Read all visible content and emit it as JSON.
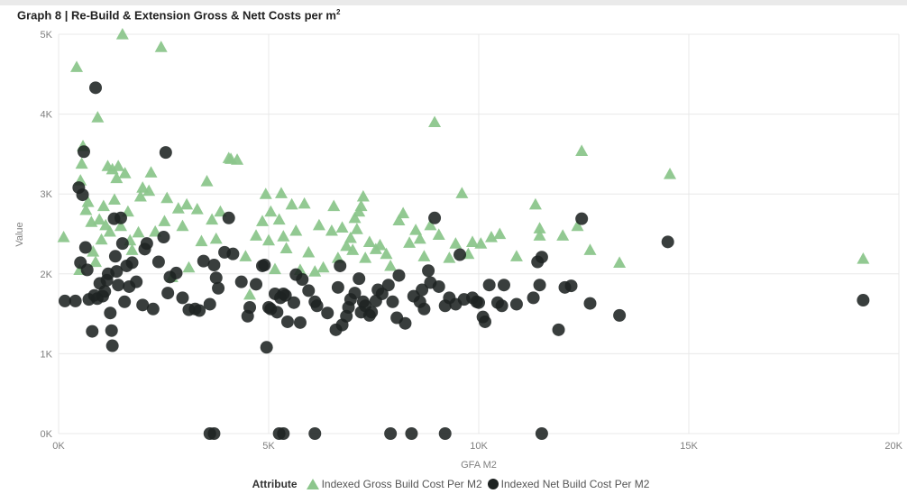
{
  "page": {
    "title": "Graph 8 | Re-Build & Extension Gross & Nett Costs per m",
    "title_sup": "2"
  },
  "legend": {
    "title": "Attribute",
    "gross_label": "Indexed Gross Build Cost Per M2",
    "net_label": "Indexed Net Build Cost Per M2"
  },
  "chart_data": {
    "type": "scatter",
    "title": "Graph 8 | Re-Build & Extension Gross & Nett Costs per m²",
    "xlabel": "GFA M2",
    "ylabel": "Value",
    "xlim": [
      0,
      20000
    ],
    "ylim": [
      0,
      5000
    ],
    "x_ticks": [
      {
        "value": 0,
        "label": "0K"
      },
      {
        "value": 5000,
        "label": "5K"
      },
      {
        "value": 10000,
        "label": "10K"
      },
      {
        "value": 15000,
        "label": "15K"
      },
      {
        "value": 20000,
        "label": "20K"
      }
    ],
    "y_ticks": [
      {
        "value": 0,
        "label": "0K"
      },
      {
        "value": 1000,
        "label": "1K"
      },
      {
        "value": 2000,
        "label": "2K"
      },
      {
        "value": 3000,
        "label": "3K"
      },
      {
        "value": 4000,
        "label": "4K"
      },
      {
        "value": 5000,
        "label": "5K"
      }
    ],
    "grid": true,
    "legend_position": "bottom",
    "series": [
      {
        "name": "Indexed Gross Build Cost Per M2",
        "marker": "triangle",
        "color": "#8cc68c",
        "points": [
          [
            120,
            2460
          ],
          [
            430,
            4590
          ],
          [
            500,
            2050
          ],
          [
            520,
            3170
          ],
          [
            550,
            3380
          ],
          [
            580,
            3600
          ],
          [
            650,
            2800
          ],
          [
            700,
            2900
          ],
          [
            780,
            2650
          ],
          [
            820,
            2280
          ],
          [
            880,
            2150
          ],
          [
            930,
            3960
          ],
          [
            970,
            2680
          ],
          [
            1020,
            2430
          ],
          [
            1070,
            2850
          ],
          [
            1120,
            2610
          ],
          [
            1170,
            3350
          ],
          [
            1220,
            2530
          ],
          [
            1280,
            3310
          ],
          [
            1330,
            2930
          ],
          [
            1380,
            3200
          ],
          [
            1420,
            3350
          ],
          [
            1480,
            2600
          ],
          [
            1520,
            5000
          ],
          [
            1580,
            3260
          ],
          [
            1650,
            2780
          ],
          [
            1700,
            2420
          ],
          [
            1750,
            2300
          ],
          [
            1900,
            2520
          ],
          [
            1950,
            2970
          ],
          [
            2000,
            3080
          ],
          [
            2150,
            3040
          ],
          [
            2200,
            3270
          ],
          [
            2300,
            2530
          ],
          [
            2440,
            4840
          ],
          [
            2520,
            2660
          ],
          [
            2580,
            2950
          ],
          [
            2700,
            1960
          ],
          [
            2850,
            2820
          ],
          [
            2950,
            2600
          ],
          [
            3050,
            2870
          ],
          [
            3100,
            2080
          ],
          [
            3300,
            2810
          ],
          [
            3400,
            2410
          ],
          [
            3530,
            3160
          ],
          [
            3650,
            2680
          ],
          [
            3750,
            2440
          ],
          [
            3850,
            2780
          ],
          [
            4050,
            3450
          ],
          [
            4100,
            3440
          ],
          [
            4250,
            3430
          ],
          [
            4450,
            2220
          ],
          [
            4550,
            1740
          ],
          [
            4700,
            2480
          ],
          [
            4850,
            2660
          ],
          [
            4930,
            3000
          ],
          [
            5000,
            2420
          ],
          [
            5050,
            2780
          ],
          [
            5150,
            2060
          ],
          [
            5250,
            2680
          ],
          [
            5300,
            3010
          ],
          [
            5350,
            2470
          ],
          [
            5420,
            2320
          ],
          [
            5550,
            2870
          ],
          [
            5650,
            2540
          ],
          [
            5750,
            2050
          ],
          [
            5850,
            2880
          ],
          [
            5950,
            2270
          ],
          [
            6100,
            2030
          ],
          [
            6200,
            2610
          ],
          [
            6300,
            2080
          ],
          [
            6500,
            2540
          ],
          [
            6550,
            2850
          ],
          [
            6650,
            2200
          ],
          [
            6750,
            2580
          ],
          [
            6850,
            2350
          ],
          [
            6950,
            2450
          ],
          [
            7000,
            2300
          ],
          [
            7050,
            2700
          ],
          [
            7100,
            2560
          ],
          [
            7150,
            2780
          ],
          [
            7200,
            2850
          ],
          [
            7250,
            2970
          ],
          [
            7300,
            2200
          ],
          [
            7400,
            2400
          ],
          [
            7550,
            2310
          ],
          [
            7650,
            2360
          ],
          [
            7800,
            2250
          ],
          [
            7900,
            2100
          ],
          [
            8100,
            2670
          ],
          [
            8200,
            2760
          ],
          [
            8350,
            2390
          ],
          [
            8500,
            2550
          ],
          [
            8600,
            2440
          ],
          [
            8700,
            2220
          ],
          [
            8850,
            2610
          ],
          [
            8950,
            3900
          ],
          [
            9050,
            2490
          ],
          [
            9300,
            2200
          ],
          [
            9450,
            2380
          ],
          [
            9600,
            3010
          ],
          [
            9750,
            2250
          ],
          [
            9850,
            2400
          ],
          [
            10050,
            2380
          ],
          [
            10300,
            2460
          ],
          [
            10500,
            2500
          ],
          [
            10900,
            2220
          ],
          [
            11350,
            2870
          ],
          [
            11450,
            2570
          ],
          [
            11450,
            2480
          ],
          [
            12000,
            2480
          ],
          [
            12350,
            2600
          ],
          [
            12450,
            3540
          ],
          [
            12650,
            2300
          ],
          [
            13350,
            2140
          ],
          [
            14550,
            3250
          ],
          [
            19150,
            2190
          ]
        ]
      },
      {
        "name": "Indexed Net Build Cost Per M2",
        "marker": "circle",
        "color": "#1e2322",
        "points": [
          [
            150,
            1660
          ],
          [
            400,
            1660
          ],
          [
            480,
            3080
          ],
          [
            520,
            2140
          ],
          [
            570,
            2990
          ],
          [
            600,
            3530
          ],
          [
            640,
            2330
          ],
          [
            680,
            2050
          ],
          [
            720,
            1680
          ],
          [
            800,
            1280
          ],
          [
            850,
            1730
          ],
          [
            880,
            4330
          ],
          [
            920,
            1690
          ],
          [
            980,
            1880
          ],
          [
            1050,
            1720
          ],
          [
            1100,
            1780
          ],
          [
            1150,
            1920
          ],
          [
            1180,
            2000
          ],
          [
            1230,
            1510
          ],
          [
            1260,
            1290
          ],
          [
            1280,
            1100
          ],
          [
            1320,
            2690
          ],
          [
            1350,
            2220
          ],
          [
            1380,
            2030
          ],
          [
            1420,
            1860
          ],
          [
            1480,
            2700
          ],
          [
            1520,
            2380
          ],
          [
            1570,
            1650
          ],
          [
            1620,
            2100
          ],
          [
            1680,
            1840
          ],
          [
            1750,
            2140
          ],
          [
            1850,
            1900
          ],
          [
            2000,
            1610
          ],
          [
            2050,
            2310
          ],
          [
            2100,
            2380
          ],
          [
            2250,
            1560
          ],
          [
            2380,
            2150
          ],
          [
            2500,
            2460
          ],
          [
            2550,
            3520
          ],
          [
            2600,
            1760
          ],
          [
            2650,
            1960
          ],
          [
            2800,
            2010
          ],
          [
            2950,
            1700
          ],
          [
            3100,
            1550
          ],
          [
            3250,
            1560
          ],
          [
            3350,
            1540
          ],
          [
            3450,
            2160
          ],
          [
            3600,
            1620
          ],
          [
            3700,
            2110
          ],
          [
            3750,
            1950
          ],
          [
            3800,
            1820
          ],
          [
            3950,
            2270
          ],
          [
            4050,
            2700
          ],
          [
            4150,
            2250
          ],
          [
            4350,
            1900
          ],
          [
            4500,
            1470
          ],
          [
            4550,
            1580
          ],
          [
            4700,
            1870
          ],
          [
            4850,
            2100
          ],
          [
            4900,
            2110
          ],
          [
            4950,
            1080
          ],
          [
            5000,
            1580
          ],
          [
            5050,
            1560
          ],
          [
            5150,
            1750
          ],
          [
            5200,
            1520
          ],
          [
            5280,
            1700
          ],
          [
            5350,
            1750
          ],
          [
            5400,
            1730
          ],
          [
            5450,
            1400
          ],
          [
            5600,
            1640
          ],
          [
            5650,
            1990
          ],
          [
            5750,
            1390
          ],
          [
            5800,
            1930
          ],
          [
            5950,
            1790
          ],
          [
            6100,
            1650
          ],
          [
            6150,
            1600
          ],
          [
            6400,
            1510
          ],
          [
            6600,
            1300
          ],
          [
            6650,
            1830
          ],
          [
            6700,
            2100
          ],
          [
            6750,
            1360
          ],
          [
            6850,
            1470
          ],
          [
            6900,
            1580
          ],
          [
            6950,
            1680
          ],
          [
            7050,
            1760
          ],
          [
            7150,
            1940
          ],
          [
            7200,
            1520
          ],
          [
            7250,
            1650
          ],
          [
            7300,
            1600
          ],
          [
            7400,
            1480
          ],
          [
            7450,
            1520
          ],
          [
            7550,
            1660
          ],
          [
            7600,
            1800
          ],
          [
            7700,
            1750
          ],
          [
            7850,
            1860
          ],
          [
            7950,
            1650
          ],
          [
            8050,
            1450
          ],
          [
            8100,
            1980
          ],
          [
            8250,
            1380
          ],
          [
            8450,
            1720
          ],
          [
            8600,
            1650
          ],
          [
            8650,
            1800
          ],
          [
            8700,
            1560
          ],
          [
            8800,
            2040
          ],
          [
            8850,
            1890
          ],
          [
            8950,
            2700
          ],
          [
            9050,
            1840
          ],
          [
            9200,
            1600
          ],
          [
            9300,
            1700
          ],
          [
            9450,
            1620
          ],
          [
            9550,
            2240
          ],
          [
            9650,
            1680
          ],
          [
            9850,
            1700
          ],
          [
            9950,
            1650
          ],
          [
            10000,
            1640
          ],
          [
            10100,
            1460
          ],
          [
            10150,
            1400
          ],
          [
            10250,
            1860
          ],
          [
            10450,
            1640
          ],
          [
            10550,
            1600
          ],
          [
            10600,
            1860
          ],
          [
            10900,
            1620
          ],
          [
            11300,
            1700
          ],
          [
            11400,
            2150
          ],
          [
            11450,
            1860
          ],
          [
            11500,
            2210
          ],
          [
            11900,
            1300
          ],
          [
            12050,
            1830
          ],
          [
            12200,
            1850
          ],
          [
            12450,
            2690
          ],
          [
            12650,
            1630
          ],
          [
            13350,
            1480
          ],
          [
            14500,
            2400
          ],
          [
            19150,
            1670
          ],
          [
            3600,
            0
          ],
          [
            3700,
            0
          ],
          [
            5250,
            0
          ],
          [
            5350,
            0
          ],
          [
            6100,
            0
          ],
          [
            7900,
            0
          ],
          [
            8400,
            0
          ],
          [
            9200,
            0
          ],
          [
            11500,
            0
          ]
        ]
      }
    ]
  }
}
